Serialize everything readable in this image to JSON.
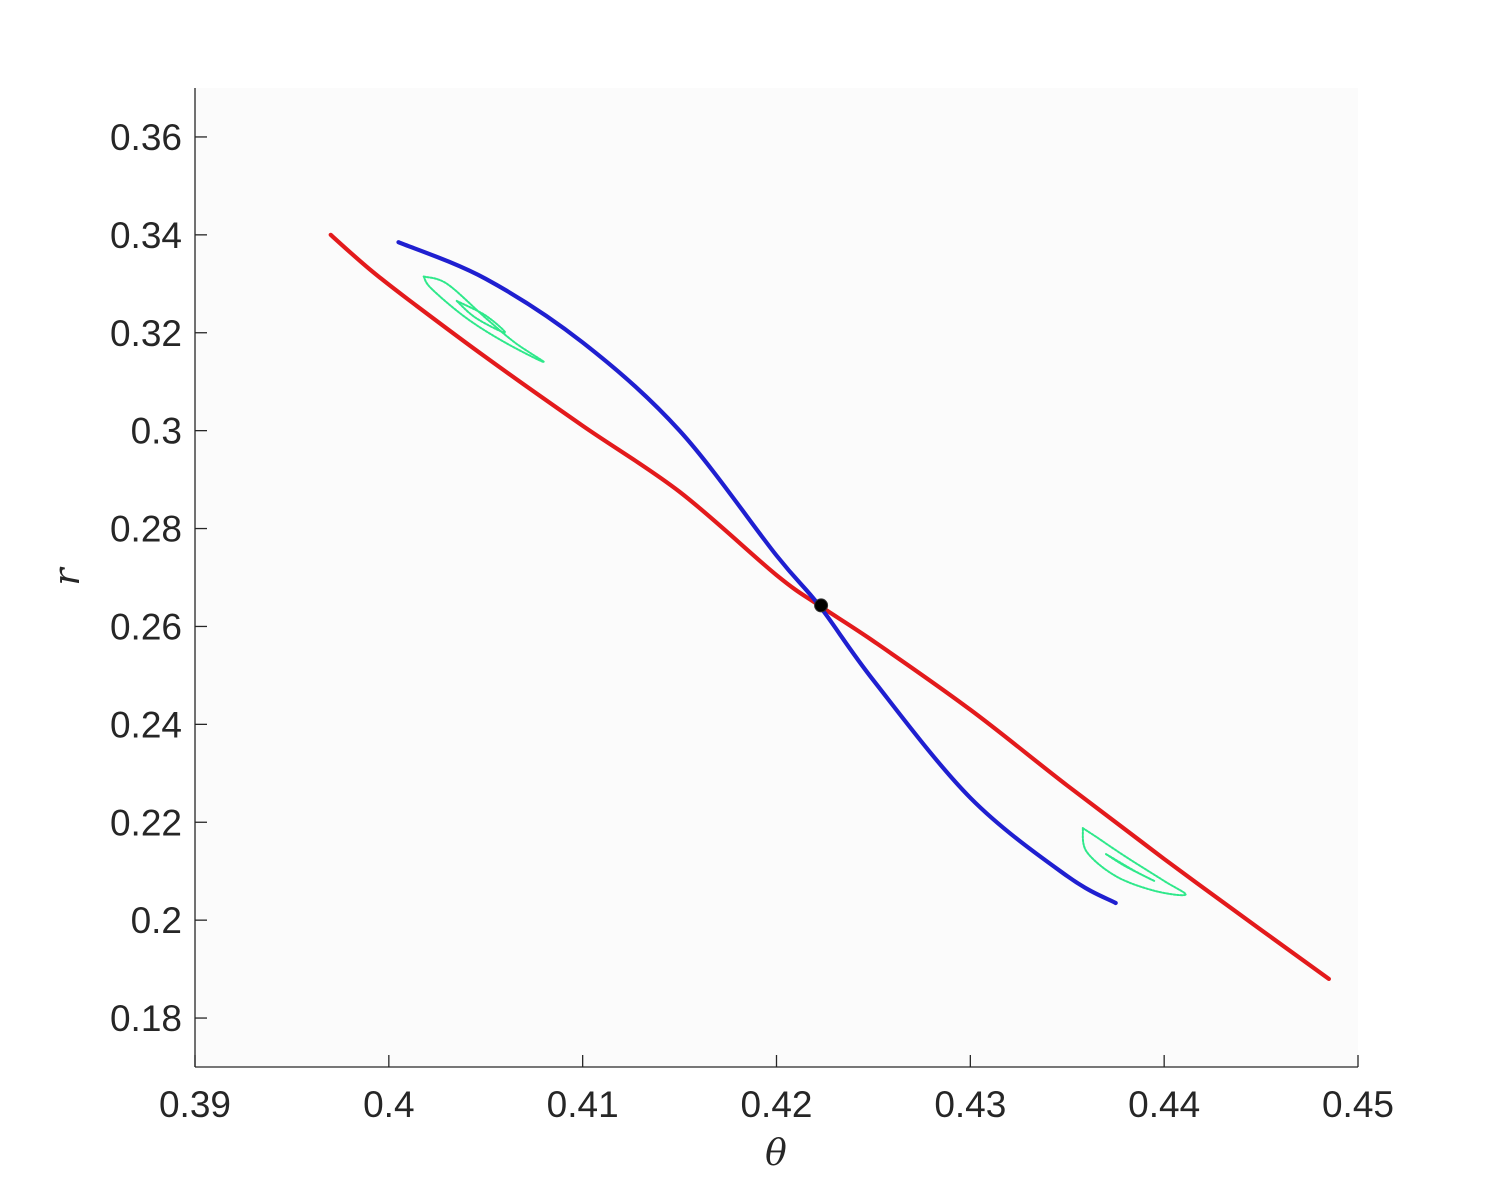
{
  "chart_data": {
    "type": "line",
    "title": "",
    "xlabel": "θ",
    "ylabel": "r",
    "xlim": [
      0.39,
      0.45
    ],
    "ylim": [
      0.17,
      0.37
    ],
    "xticks": [
      0.39,
      0.4,
      0.41,
      0.42,
      0.43,
      0.44,
      0.45
    ],
    "xtick_labels": [
      "0.39",
      "0.4",
      "0.41",
      "0.42",
      "0.43",
      "0.44",
      "0.45"
    ],
    "yticks": [
      0.18,
      0.2,
      0.22,
      0.24,
      0.26,
      0.28,
      0.3,
      0.32,
      0.34,
      0.36
    ],
    "ytick_labels": [
      "0.18",
      "0.2",
      "0.22",
      "0.24",
      "0.26",
      "0.28",
      "0.3",
      "0.32",
      "0.34",
      "0.36"
    ],
    "grid": false,
    "legend": "none",
    "series": [
      {
        "color": "#e31a1c",
        "x": [
          0.397,
          0.399,
          0.401,
          0.405,
          0.41,
          0.415,
          0.42,
          0.4222,
          0.425,
          0.43,
          0.435,
          0.44,
          0.445,
          0.4485
        ],
        "y": [
          0.34,
          0.333,
          0.3268,
          0.315,
          0.301,
          0.2875,
          0.2705,
          0.2643,
          0.257,
          0.243,
          0.2275,
          0.2125,
          0.198,
          0.188
        ]
      },
      {
        "color": "#1f1fd0",
        "x": [
          0.4005,
          0.405,
          0.41,
          0.415,
          0.42,
          0.4222,
          0.425,
          0.43,
          0.435,
          0.4375
        ],
        "y": [
          0.3385,
          0.331,
          0.318,
          0.3,
          0.2745,
          0.2643,
          0.249,
          0.225,
          0.209,
          0.2035
        ]
      },
      {
        "color": "#2ee88a",
        "type": "contour",
        "x": [
          0.4018,
          0.403,
          0.405,
          0.4065,
          0.408,
          0.406,
          0.404,
          0.4022,
          0.4018
        ],
        "y": [
          0.3315,
          0.33,
          0.323,
          0.318,
          0.314,
          0.318,
          0.323,
          0.329,
          0.3315
        ]
      },
      {
        "color": "#2ee88a",
        "type": "contour",
        "x": [
          0.4035,
          0.4045,
          0.406,
          0.405,
          0.4035
        ],
        "y": [
          0.3265,
          0.323,
          0.32,
          0.3235,
          0.3265
        ]
      },
      {
        "color": "#2ee88a",
        "type": "contour",
        "x": [
          0.4358,
          0.4365,
          0.438,
          0.44,
          0.4411,
          0.4395,
          0.4375,
          0.436,
          0.4358
        ],
        "y": [
          0.2188,
          0.217,
          0.213,
          0.208,
          0.2052,
          0.206,
          0.209,
          0.214,
          0.2188
        ]
      },
      {
        "color": "#2ee88a",
        "type": "contour",
        "x": [
          0.437,
          0.438,
          0.4395,
          0.4385,
          0.437
        ],
        "y": [
          0.2135,
          0.211,
          0.208,
          0.21,
          0.2135
        ]
      }
    ],
    "points": [
      {
        "x": 0.4223,
        "y": 0.2643,
        "color": "#000000"
      }
    ]
  }
}
